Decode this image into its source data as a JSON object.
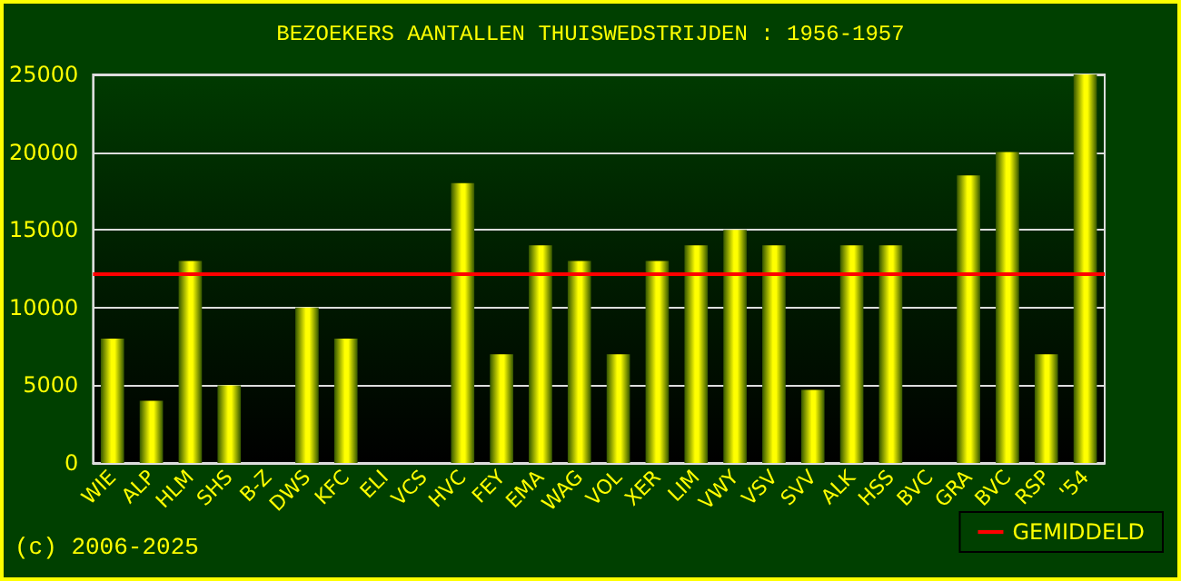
{
  "chart_data": {
    "type": "bar",
    "title": "BEZOEKERS AANTALLEN THUISWEDSTRIJDEN : 1956-1957",
    "categories": [
      "WIE",
      "ALP",
      "HLM",
      "SHS",
      "B-Z",
      "DWS",
      "KFC",
      "ELI",
      "VCS",
      "HVC",
      "FEY",
      "EMA",
      "WAG",
      "VOL",
      "XER",
      "LIM",
      "VWY",
      "VSV",
      "SVV",
      "ALK",
      "HSS",
      "BVC",
      "GRA",
      "BVC",
      "RSP",
      "'54"
    ],
    "values": [
      8000,
      4000,
      13000,
      5000,
      null,
      10000,
      8000,
      null,
      null,
      18000,
      7000,
      14000,
      13000,
      7000,
      13000,
      14000,
      15000,
      14000,
      4700,
      14000,
      14000,
      null,
      18500,
      20000,
      7000,
      25000
    ],
    "color": "#ffff00",
    "ylim": [
      0,
      25000
    ],
    "yticks": [
      0,
      5000,
      10000,
      15000,
      20000,
      25000
    ],
    "grid": "y",
    "ref_lines": [
      {
        "axis": "y",
        "value": 12150,
        "label": "GEMIDDELD",
        "color": "#ff0000"
      }
    ],
    "legend": "bottom right",
    "annotations": [
      "(c) 2006-2025"
    ]
  }
}
